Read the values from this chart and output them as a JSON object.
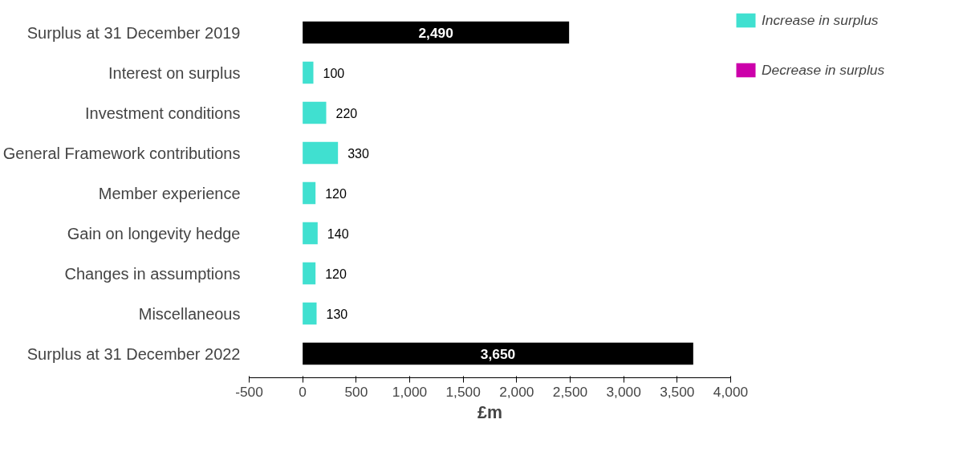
{
  "chart_data": {
    "type": "bar",
    "orientation": "horizontal",
    "xlabel": "£m",
    "categories": [
      "Surplus at 31 December 2019",
      "Interest on surplus",
      "Investment conditions",
      "General Framework contributions",
      "Member experience",
      "Gain on longevity hedge",
      "Changes in assumptions",
      "Miscellaneous",
      "Surplus at 31 December 2022"
    ],
    "series": [
      {
        "color": "#000000",
        "values": [
          2490,
          null,
          null,
          null,
          null,
          null,
          null,
          null,
          3650
        ],
        "value_labels": [
          "2,490",
          null,
          null,
          null,
          null,
          null,
          null,
          null,
          "3,650"
        ]
      },
      {
        "name": "Increase in surplus",
        "color": "#40e0d0",
        "values": [
          null,
          100,
          220,
          330,
          120,
          140,
          120,
          130,
          null
        ],
        "value_labels": [
          null,
          "100",
          "220",
          "330",
          "120",
          "140",
          "120",
          "130",
          null
        ]
      },
      {
        "name": "Decrease in surplus",
        "color": "#cc00aa",
        "values": [
          null,
          null,
          null,
          null,
          null,
          null,
          null,
          null,
          null
        ]
      }
    ],
    "xlim": [
      -500,
      4000
    ],
    "xticks": [
      {
        "value": -500,
        "label": "-500"
      },
      0,
      500,
      {
        "value": 1000,
        "label": "1,000"
      },
      {
        "value": 1500,
        "label": "1,500"
      },
      {
        "value": 2000,
        "label": "2,000"
      },
      {
        "value": 2500,
        "label": "2,500"
      },
      {
        "value": 3000,
        "label": "3,000"
      },
      {
        "value": 3500,
        "label": "3,500"
      },
      {
        "value": 4000,
        "label": "4,000"
      }
    ],
    "grid": false,
    "legend": "top right"
  }
}
